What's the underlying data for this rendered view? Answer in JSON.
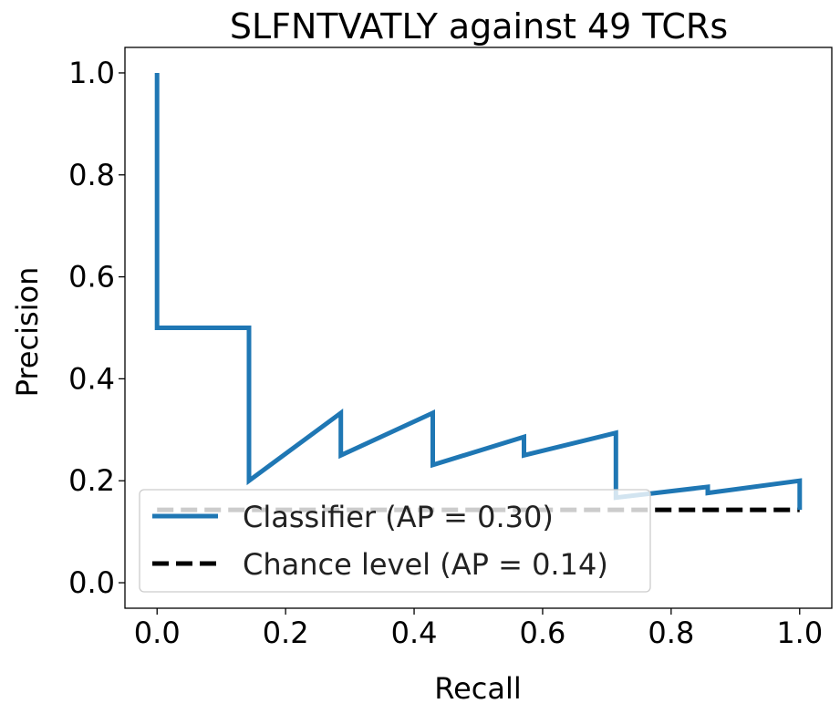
{
  "chart_data": {
    "type": "line",
    "title": "SLFNTVATLY against 49 TCRs",
    "xlabel": "Recall",
    "ylabel": "Precision",
    "xlim": [
      -0.05,
      1.05
    ],
    "ylim": [
      -0.05,
      1.05
    ],
    "xticks": [
      "0.0",
      "0.2",
      "0.4",
      "0.6",
      "0.8",
      "1.0"
    ],
    "yticks": [
      "0.0",
      "0.2",
      "0.4",
      "0.6",
      "0.8",
      "1.0"
    ],
    "grid": false,
    "legend_position": "lower-left",
    "series": [
      {
        "name": "Classifier (AP = 0.30)",
        "color": "#1f77b4",
        "style": "steps",
        "recall": [
          1.0,
          1.0,
          0.857,
          0.857,
          0.714,
          0.714,
          0.571,
          0.571,
          0.429,
          0.429,
          0.286,
          0.286,
          0.143,
          0.143,
          0.0,
          0.0
        ],
        "precision": [
          0.143,
          0.2,
          0.176,
          0.188,
          0.167,
          0.294,
          0.25,
          0.286,
          0.231,
          0.333,
          0.25,
          0.333,
          0.2,
          0.5,
          0.5,
          1.0
        ]
      },
      {
        "name": "Chance level (AP = 0.14)",
        "color": "#000000",
        "style": "dashed",
        "recall": [
          0.0,
          1.0
        ],
        "precision": [
          0.143,
          0.143
        ]
      }
    ]
  }
}
